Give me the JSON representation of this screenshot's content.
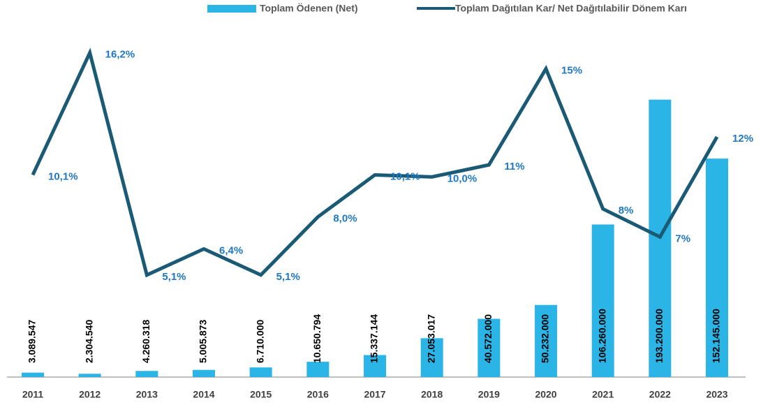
{
  "chart_data": {
    "type": "bar-line",
    "categories": [
      "2011",
      "2012",
      "2013",
      "2014",
      "2015",
      "2016",
      "2017",
      "2018",
      "2019",
      "2020",
      "2021",
      "2022",
      "2023"
    ],
    "series": [
      {
        "name": "Toplam Ödenen (Net)",
        "type": "bar",
        "color": "#2bb5e6",
        "values": [
          3089547,
          2304540,
          4260318,
          5005873,
          6710000,
          10650794,
          15337144,
          27053017,
          40572000,
          50232000,
          106260000,
          193200000,
          152145000
        ],
        "value_labels": [
          "3.089.547",
          "2.304.540",
          "4.260.318",
          "5.005.873",
          "6.710.000",
          "10.650.794",
          "15.337.144",
          "27.053.017",
          "40.572.000",
          "50.232.000",
          "106.260.000",
          "193.200.000",
          "152.145.000"
        ]
      },
      {
        "name": "Toplam Dağıtılan Kar/ Net Dağıtılabilir Dönem Karı",
        "type": "line",
        "axis": "y2",
        "color": "#1a5a75",
        "values": [
          10.1,
          16.2,
          5.1,
          6.4,
          5.1,
          8.0,
          10.1,
          10.0,
          10.6,
          15.4,
          8.4,
          7.0,
          12.0
        ],
        "value_labels": [
          "10,1%",
          "16,2%",
          "5,1%",
          "6,4%",
          "5,1%",
          "8,0%",
          "10,1%",
          "10,0%",
          "11%",
          "15%",
          "8%",
          "7%",
          "12%"
        ]
      }
    ],
    "ylim": [
      0,
      230000000
    ],
    "y2lim": [
      0,
      16.5
    ],
    "legend": "top"
  }
}
